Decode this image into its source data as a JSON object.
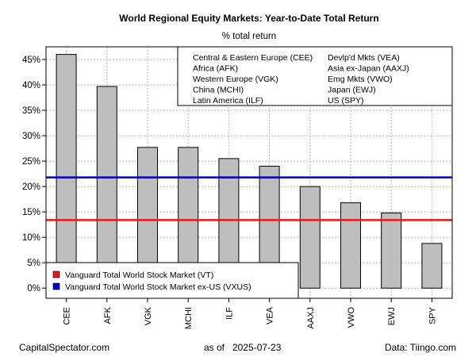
{
  "chart_data": {
    "type": "bar",
    "title": "World Regional Equity Markets: Year-to-Date Total Return",
    "subtitle": "% total return",
    "categories": [
      "CEE",
      "AFK",
      "VGK",
      "MCHI",
      "ILF",
      "VEA",
      "AAXJ",
      "VWO",
      "EWJ",
      "SPY"
    ],
    "values": [
      46.0,
      39.7,
      27.7,
      27.7,
      25.5,
      24.0,
      20.0,
      16.8,
      14.8,
      8.8
    ],
    "ylim": [
      -2,
      47.5
    ],
    "yticks": [
      0,
      5,
      10,
      15,
      20,
      25,
      30,
      35,
      40,
      45
    ],
    "ytick_labels": [
      "0%",
      "5%",
      "10%",
      "15%",
      "20%",
      "25%",
      "30%",
      "35%",
      "40%",
      "45%"
    ],
    "grid": true,
    "bar_color": "#bebebe",
    "reference_lines": [
      {
        "name": "Vanguard Total World Stock Market (VT)",
        "value": 13.4,
        "color": "#e31a1c"
      },
      {
        "name": "Vanguard Total World Stock Market ex-US (VXUS)",
        "value": 21.8,
        "color": "#0000cc"
      }
    ],
    "ticker_legend": [
      "Central & Eastern Europe (CEE)",
      "Africa (AFK)",
      "Western Europe (VGK)",
      "China (MCHI)",
      "Latin America (ILF)",
      "Devlp'd Mkts (VEA)",
      "Asia ex-Japan (AAXJ)",
      "Emg Mkts (VWO)",
      "Japan (EWJ)",
      "US (SPY)"
    ],
    "ticker_legend_placement": "top-right",
    "line_legend_placement": "bottom-left"
  },
  "footer": {
    "left": "CapitalSpectator.com",
    "as_of_label": "as of",
    "date": "2025-07-23",
    "right": "Data: Tiingo.com"
  }
}
